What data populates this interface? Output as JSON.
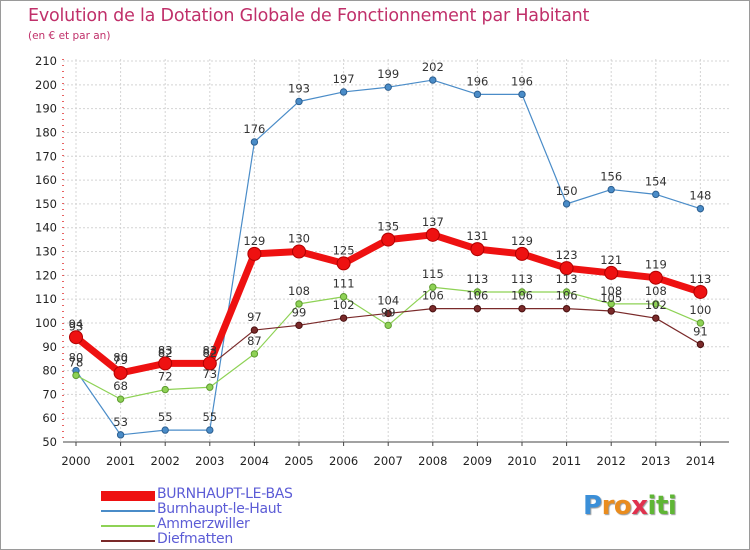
{
  "title": "Evolution de la Dotation Globale de Fonctionnement par Habitant",
  "subtitle": "(en € et par an)",
  "logo": {
    "letters": [
      "P",
      "r",
      "o",
      "x",
      "i",
      "t",
      "i"
    ],
    "colors": [
      "#3b8fd8",
      "#e98c1e",
      "#e98c1e",
      "#e0314d",
      "#5fb635",
      "#5fb635",
      "#5fb635"
    ]
  },
  "chart_data": {
    "type": "line",
    "title": "Evolution de la Dotation Globale de Fonctionnement par Habitant",
    "subtitle": "(en € et par an)",
    "x": [
      "2000",
      "2001",
      "2002",
      "2003",
      "2004",
      "2005",
      "2006",
      "2007",
      "2008",
      "2009",
      "2010",
      "2011",
      "2012",
      "2013",
      "2014"
    ],
    "ylim": [
      50,
      210
    ],
    "yticks": [
      50,
      60,
      70,
      80,
      90,
      100,
      110,
      120,
      130,
      140,
      150,
      160,
      170,
      180,
      190,
      200,
      210
    ],
    "grid": true,
    "legend": "bottom-left",
    "series": [
      {
        "name": "BURNHAUPT-LE-BAS",
        "color": "#ee1111",
        "values": [
          94,
          79,
          83,
          83,
          129,
          130,
          125,
          135,
          137,
          131,
          129,
          123,
          121,
          119,
          113
        ]
      },
      {
        "name": "Burnhaupt-le-Haut",
        "color": "#4a8cc8",
        "values": [
          80,
          53,
          55,
          55,
          176,
          193,
          197,
          199,
          202,
          196,
          196,
          150,
          156,
          154,
          148
        ]
      },
      {
        "name": "Ammerzwiller",
        "color": "#8ed255",
        "values": [
          78,
          68,
          72,
          73,
          87,
          108,
          111,
          99,
          115,
          113,
          113,
          113,
          108,
          108,
          100
        ]
      },
      {
        "name": "Diefmatten",
        "color": "#7a2a2a",
        "values": [
          93,
          80,
          82,
          82,
          97,
          99,
          102,
          104,
          106,
          106,
          106,
          106,
          105,
          102,
          91
        ]
      }
    ]
  }
}
